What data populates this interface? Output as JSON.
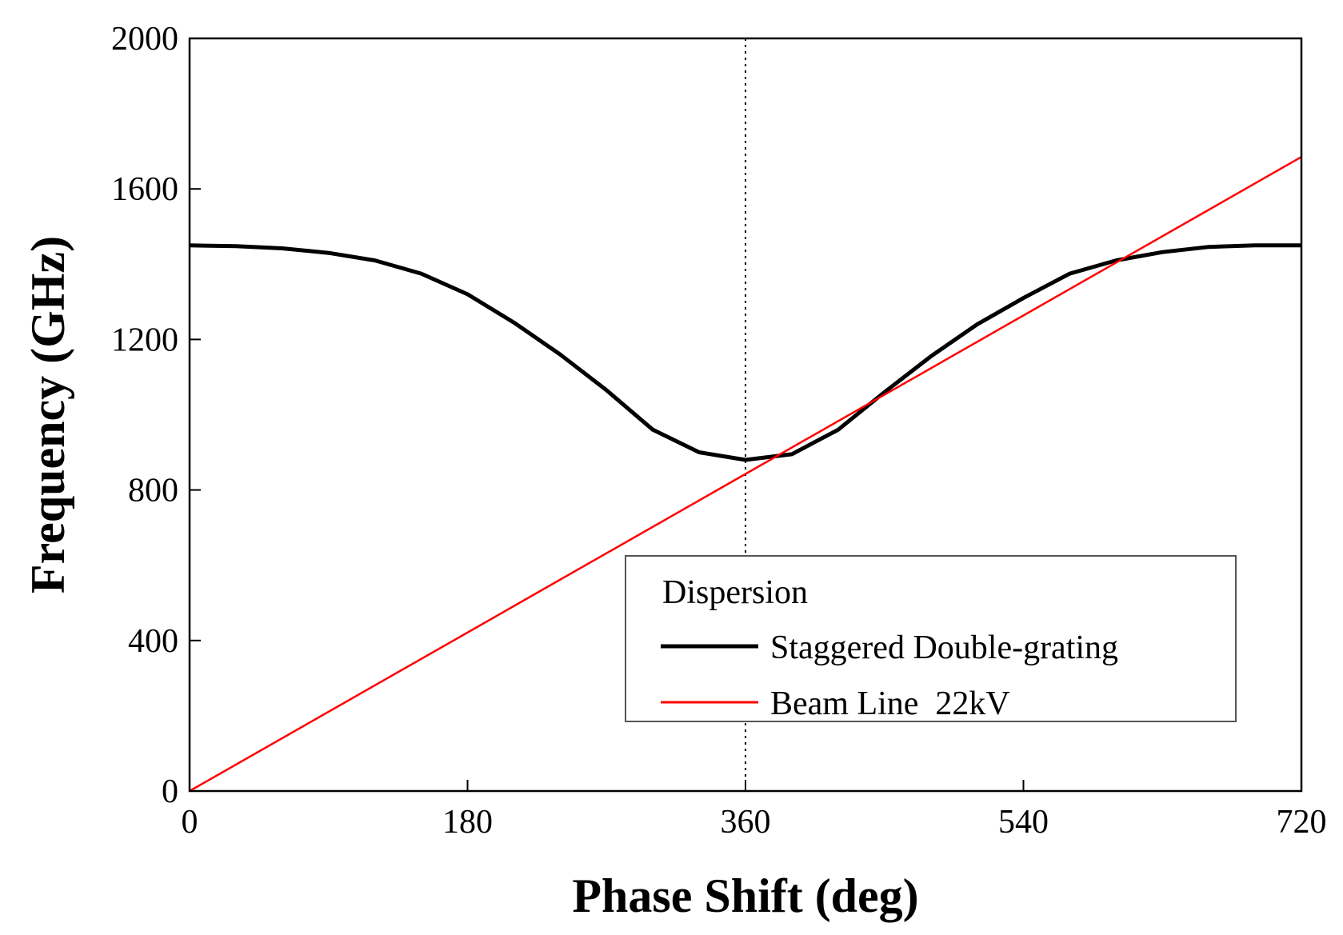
{
  "chart_data": {
    "type": "line",
    "x_label": "Phase Shift (deg)",
    "y_label": "Frequency (GHz)",
    "xlim": [
      0,
      720
    ],
    "ylim": [
      0,
      2000
    ],
    "xticks": [
      0,
      180,
      360,
      540,
      720
    ],
    "yticks": [
      0,
      400,
      800,
      1200,
      1600,
      2000
    ],
    "vline": 360,
    "legend_title": "Dispersion",
    "legend_position": "lower right",
    "series": [
      {
        "name": "Staggered Double-grating",
        "color": "#000000",
        "x": [
          0,
          30,
          60,
          90,
          120,
          150,
          180,
          210,
          240,
          270,
          300,
          330,
          360,
          390,
          420,
          450,
          480,
          510,
          540,
          570,
          600,
          630,
          660,
          690,
          720
        ],
        "values": [
          1450,
          1448,
          1442,
          1430,
          1410,
          1375,
          1320,
          1245,
          1160,
          1065,
          960,
          900,
          880,
          895,
          960,
          1060,
          1155,
          1240,
          1310,
          1375,
          1410,
          1432,
          1446,
          1450,
          1450
        ]
      },
      {
        "name": "Beam Line  22kV",
        "color": "#ff0000",
        "x": [
          0,
          720
        ],
        "values": [
          0,
          1685
        ]
      }
    ]
  }
}
